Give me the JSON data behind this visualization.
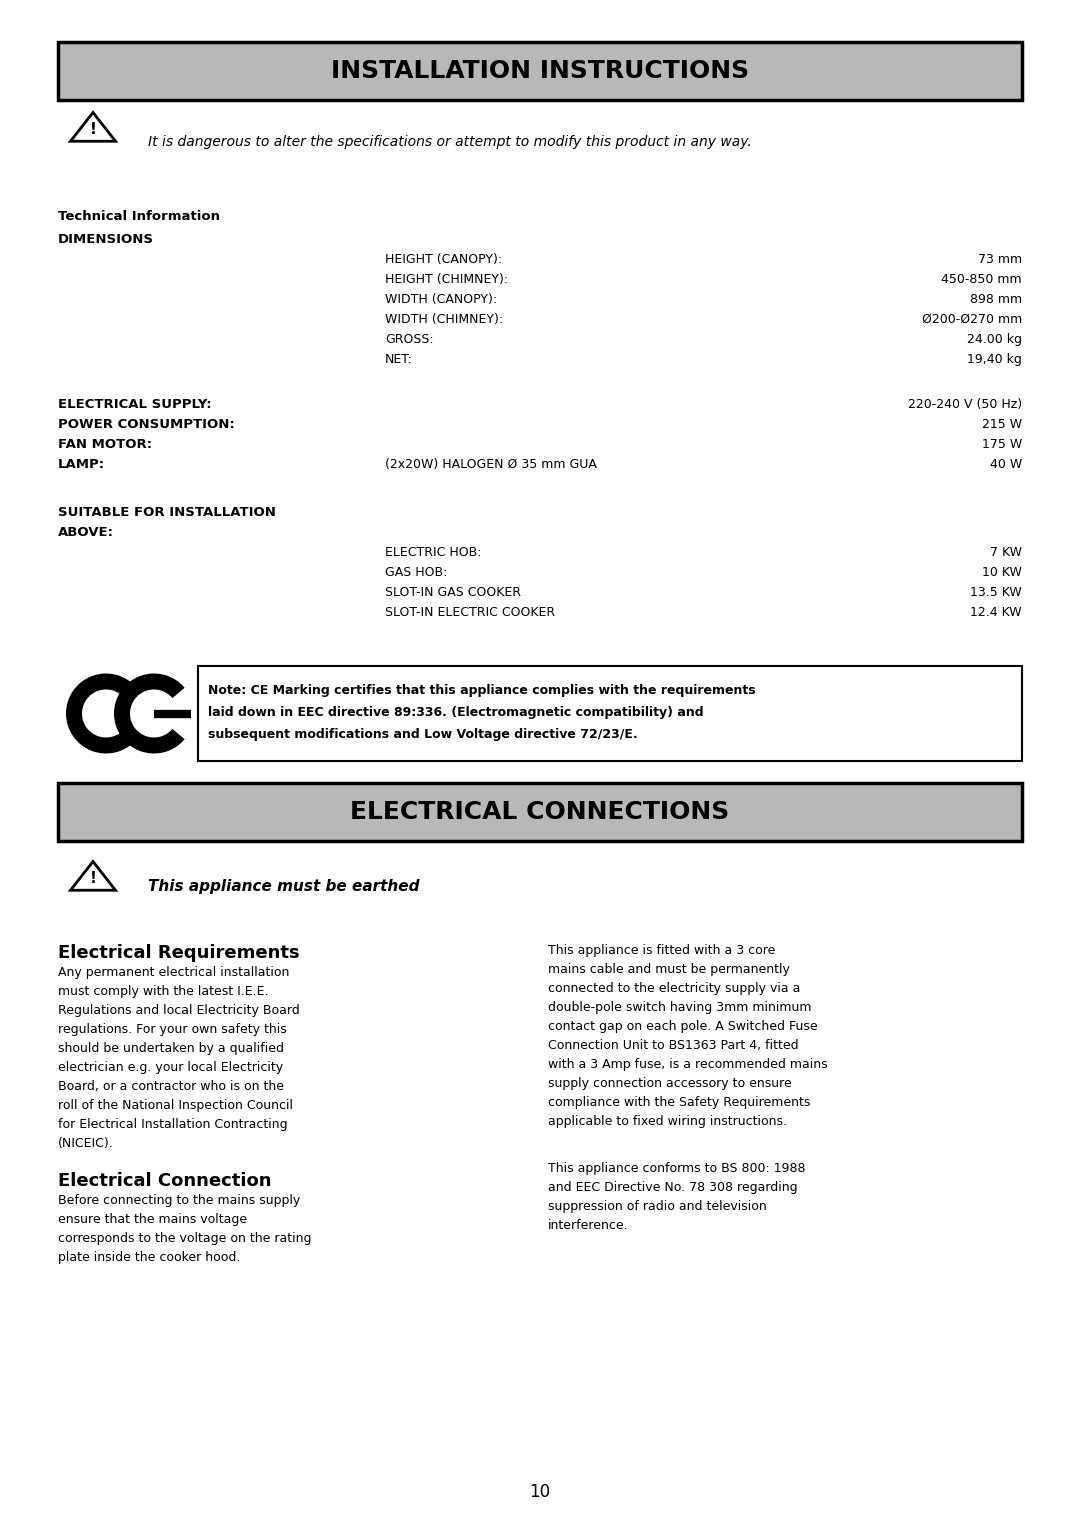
{
  "page_bg": "#ffffff",
  "header1_text": "INSTALLATION INSTRUCTIONS",
  "header_bg": "#b8b8b8",
  "header_border": "#000000",
  "warning_text": "It is dangerous to alter the specifications or attempt to modify this product in any way.",
  "tech_info_label": "Technical Information",
  "dimensions_label": "DIMENSIONS",
  "dim_rows": [
    [
      "HEIGHT (CANOPY):",
      "73 mm"
    ],
    [
      "HEIGHT (CHIMNEY):",
      "450-850 mm"
    ],
    [
      "WIDTH (CANOPY):",
      "898 mm"
    ],
    [
      "WIDTH (CHIMNEY):",
      "Ø200-Ø270 mm"
    ],
    [
      "GROSS:",
      "24.00 kg"
    ],
    [
      "NET:",
      "19,40 kg"
    ]
  ],
  "elec_supply_label": "ELECTRICAL SUPPLY:",
  "elec_supply_val": "220-240 V (50 Hz)",
  "power_label": "POWER CONSUMPTION:",
  "power_val": "215 W",
  "fan_label": "FAN MOTOR:",
  "fan_val": "175 W",
  "lamp_label": "LAMP:",
  "lamp_mid": "(2x20W) HALOGEN Ø 35 mm GUA",
  "lamp_val": "40 W",
  "suitable_label": "SUITABLE FOR INSTALLATION",
  "above_label": "ABOVE:",
  "above_rows": [
    [
      "ELECTRIC HOB:",
      "7 KW"
    ],
    [
      "GAS HOB:",
      "10 KW"
    ],
    [
      "SLOT-IN GAS COOKER",
      "13.5 KW"
    ],
    [
      "SLOT-IN ELECTRIC COOKER",
      "12.4 KW"
    ]
  ],
  "ce_note_lines": [
    "Note: CE Marking certifies that this appliance complies with the requirements",
    "laid down in EEC directive 89:336. (Electromagnetic compatibility) and",
    "subsequent modifications and Low Voltage directive 72/23/E."
  ],
  "header2_text": "ELECTRICAL CONNECTIONS",
  "earthed_text": "This appliance must be earthed",
  "elec_req_title": "Electrical Requirements",
  "elec_req_body": "Any permanent electrical installation must comply with the latest I.E.E. Regulations and local Electricity Board regulations. For your own safety this should be undertaken by a qualified electrician e.g. your local Electricity Board, or a contractor who is on the roll of the National Inspection Council for Electrical Installation Contracting (NICEIC).",
  "elec_conn_title": "Electrical Connection",
  "elec_conn_body": "Before connecting to the mains supply ensure that the mains voltage corresponds to the voltage on the rating plate inside the cooker hood.",
  "right_col1": "This appliance is fitted with a 3 core mains cable and must be permanently connected to the electricity supply via a double-pole switch having 3mm minimum contact gap on each pole. A Switched Fuse Connection Unit to BS1363 Part 4, fitted with a 3 Amp fuse, is a recommended mains supply connection accessory to ensure compliance with the Safety Requirements applicable to fixed wiring instructions.",
  "right_col2": "This appliance conforms to BS 800: 1988 and EEC Directive No. 78 308 regarding suppression of radio and television interference.",
  "page_number": "10"
}
